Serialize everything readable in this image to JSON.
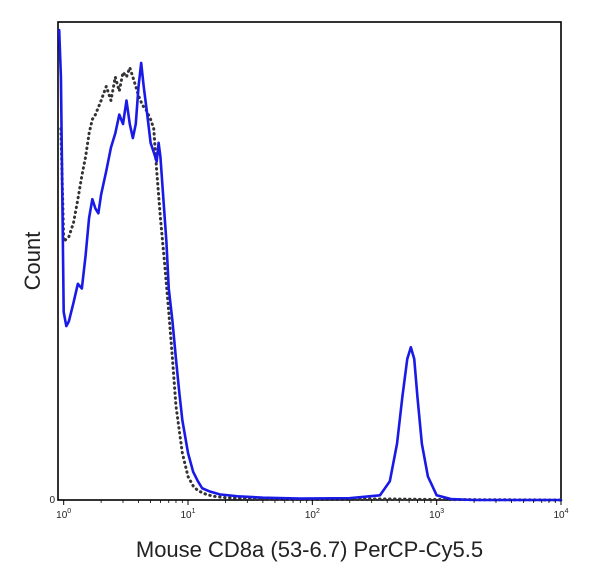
{
  "chart_data": {
    "type": "line",
    "xlabel": "Mouse CD8a (53-6.7) PerCP-Cy5.5",
    "ylabel": "Count",
    "xscale": "log",
    "xlim": [
      0.9,
      10000
    ],
    "ylim": [
      0,
      1
    ],
    "y_zero_label": "0",
    "x_ticks": [
      {
        "value": 1,
        "base": "10",
        "exp": "0"
      },
      {
        "value": 10,
        "base": "10",
        "exp": "1"
      },
      {
        "value": 100,
        "base": "10",
        "exp": "2"
      },
      {
        "value": 1000,
        "base": "10",
        "exp": "3"
      },
      {
        "value": 10000,
        "base": "10",
        "exp": "4"
      }
    ],
    "grid": false,
    "legend": "none",
    "series": [
      {
        "style": "dotted",
        "color": "#333333",
        "x": [
          0.95,
          1.0,
          1.1,
          1.2,
          1.3,
          1.4,
          1.5,
          1.6,
          1.7,
          1.8,
          2.0,
          2.2,
          2.4,
          2.6,
          2.8,
          3.0,
          3.2,
          3.4,
          3.6,
          3.8,
          4.0,
          4.3,
          4.6,
          5.0,
          5.3,
          5.6,
          6.0,
          6.5,
          7.0,
          7.5,
          8.0,
          9.0,
          10.0,
          11.0,
          12.0,
          14.0,
          16.0,
          20.0,
          30.0,
          50.0,
          100.0,
          200.0,
          500.0,
          1000.0,
          10000.0
        ],
        "y": [
          0.79,
          0.55,
          0.56,
          0.59,
          0.64,
          0.69,
          0.73,
          0.78,
          0.81,
          0.82,
          0.85,
          0.88,
          0.85,
          0.9,
          0.87,
          0.91,
          0.9,
          0.92,
          0.9,
          0.88,
          0.86,
          0.84,
          0.83,
          0.81,
          0.79,
          0.7,
          0.6,
          0.5,
          0.4,
          0.3,
          0.2,
          0.1,
          0.05,
          0.03,
          0.02,
          0.012,
          0.008,
          0.005,
          0.003,
          0.002,
          0.002,
          0.002,
          0.002,
          0.001,
          0.0
        ]
      },
      {
        "style": "solid",
        "color": "#1a1ae6",
        "x": [
          0.92,
          0.95,
          1.0,
          1.05,
          1.1,
          1.2,
          1.3,
          1.4,
          1.5,
          1.6,
          1.7,
          1.8,
          1.9,
          2.0,
          2.2,
          2.4,
          2.6,
          2.8,
          3.0,
          3.2,
          3.4,
          3.6,
          3.8,
          4.0,
          4.2,
          4.4,
          4.7,
          5.0,
          5.3,
          5.6,
          5.8,
          6.0,
          6.3,
          6.7,
          7.0,
          7.5,
          8.0,
          8.5,
          9.0,
          10.0,
          11.0,
          12.0,
          13.0,
          15.0,
          18.0,
          25.0,
          40.0,
          80.0,
          200.0,
          350.0,
          420.0,
          480.0,
          530.0,
          580.0,
          620.0,
          660.0,
          700.0,
          760.0,
          850.0,
          1000.0,
          1300.0,
          2000.0,
          10000.0
        ],
        "y": [
          1.0,
          0.9,
          0.4,
          0.37,
          0.38,
          0.42,
          0.46,
          0.45,
          0.52,
          0.6,
          0.64,
          0.62,
          0.61,
          0.65,
          0.7,
          0.75,
          0.78,
          0.82,
          0.8,
          0.85,
          0.8,
          0.77,
          0.8,
          0.88,
          0.93,
          0.88,
          0.82,
          0.76,
          0.74,
          0.72,
          0.76,
          0.73,
          0.65,
          0.55,
          0.45,
          0.38,
          0.3,
          0.23,
          0.17,
          0.1,
          0.06,
          0.04,
          0.025,
          0.018,
          0.012,
          0.008,
          0.005,
          0.003,
          0.004,
          0.01,
          0.04,
          0.12,
          0.22,
          0.3,
          0.325,
          0.3,
          0.22,
          0.12,
          0.05,
          0.01,
          0.002,
          0.0,
          0.0
        ]
      }
    ]
  }
}
